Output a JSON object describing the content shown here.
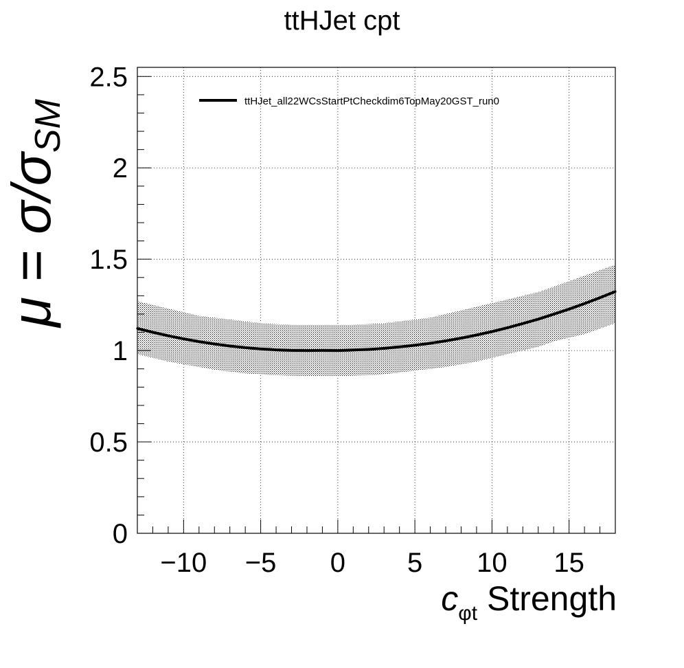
{
  "chart_data": {
    "type": "line",
    "title": "ttHJet cpt",
    "xlabel": {
      "symbol": "c",
      "subscript": "φt",
      "suffix": " Strength"
    },
    "ylabel": {
      "mu": "μ",
      "equals": " = ",
      "sigma_over": "σ/σ",
      "subscript": "SM"
    },
    "xlim": [
      -13,
      18
    ],
    "ylim": [
      0,
      2.55
    ],
    "x_ticks": [
      -10,
      -5,
      0,
      5,
      10,
      15
    ],
    "x_tick_labels": [
      "−10",
      "−5",
      "0",
      "5",
      "10",
      "15"
    ],
    "y_ticks": [
      0,
      0.5,
      1,
      1.5,
      2,
      2.5
    ],
    "y_tick_labels": [
      "0",
      "0.5",
      "1",
      "1.5",
      "2",
      "2.5"
    ],
    "grid": true,
    "legend": {
      "placement": "top-left",
      "entries": [
        "ttHJet_all22WCsStartPtCheckdim6TopMay20GST_run0"
      ]
    },
    "series": [
      {
        "name": "ttHJet_all22WCsStartPtCheckdim6TopMay20GST_run0",
        "color": "#000000",
        "x": [
          -13,
          -12,
          -11,
          -10,
          -9,
          -8,
          -7,
          -6,
          -5,
          -4,
          -3,
          -2,
          -1,
          0,
          1,
          2,
          3,
          4,
          5,
          6,
          7,
          8,
          9,
          10,
          11,
          12,
          13,
          14,
          15,
          16,
          17,
          18
        ],
        "y": [
          1.121,
          1.1,
          1.081,
          1.064,
          1.049,
          1.036,
          1.025,
          1.016,
          1.009,
          1.004,
          1.001,
          1.0,
          1.001,
          1.0,
          1.003,
          1.006,
          1.012,
          1.02,
          1.029,
          1.04,
          1.053,
          1.068,
          1.085,
          1.104,
          1.125,
          1.148,
          1.172,
          1.199,
          1.227,
          1.257,
          1.289,
          1.323
        ],
        "band_upper": [
          1.27,
          1.25,
          1.23,
          1.21,
          1.19,
          1.18,
          1.17,
          1.16,
          1.15,
          1.145,
          1.14,
          1.14,
          1.14,
          1.14,
          1.14,
          1.145,
          1.15,
          1.16,
          1.17,
          1.18,
          1.2,
          1.22,
          1.24,
          1.26,
          1.28,
          1.3,
          1.32,
          1.35,
          1.38,
          1.41,
          1.44,
          1.47
        ],
        "band_lower": [
          0.98,
          0.96,
          0.94,
          0.925,
          0.91,
          0.895,
          0.885,
          0.875,
          0.87,
          0.865,
          0.862,
          0.86,
          0.86,
          0.86,
          0.862,
          0.865,
          0.87,
          0.88,
          0.89,
          0.9,
          0.91,
          0.925,
          0.94,
          0.96,
          0.98,
          1.0,
          1.02,
          1.05,
          1.07,
          1.09,
          1.12,
          1.15
        ]
      }
    ]
  }
}
